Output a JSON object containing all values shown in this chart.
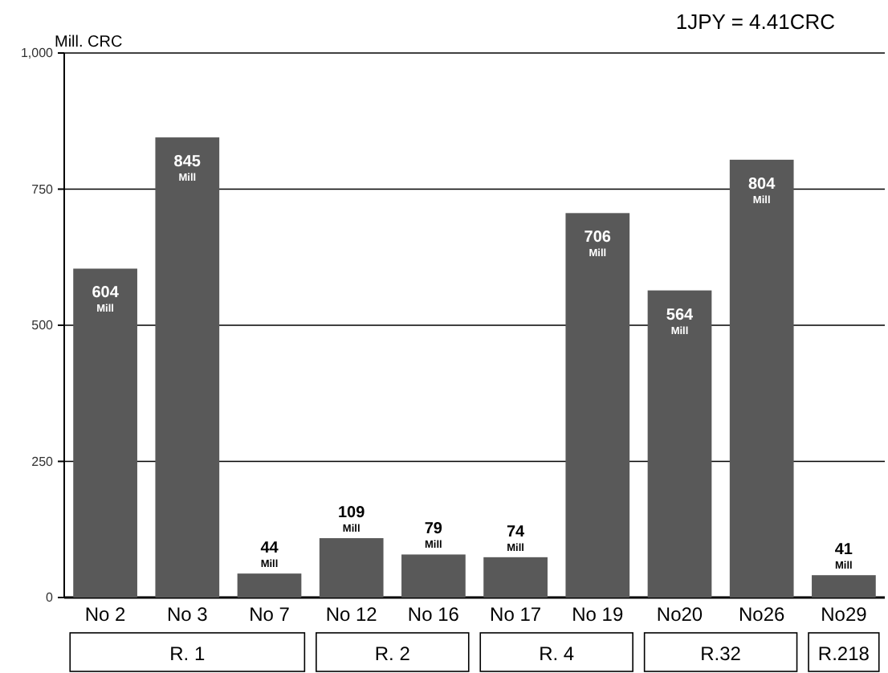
{
  "chart_data": {
    "type": "bar",
    "ylabel": "Mill. CRC",
    "categories": [
      "No 2",
      "No 3",
      "No 7",
      "No 12",
      "No 16",
      "No 17",
      "No 19",
      "No20",
      "No26",
      "No29"
    ],
    "values": [
      604,
      845,
      44,
      109,
      79,
      74,
      706,
      564,
      804,
      41
    ],
    "value_labels": [
      "604$_{Mill}$",
      "845$_{Mill}$",
      "44$_{Mill}$",
      "109$_{Mill}$",
      "79$_{Mill}$",
      "74$_{Mill}$",
      "706$_{Mill}$",
      "564$_{Mill}$",
      "804$_{Mill}$",
      "41$_{Mill}$"
    ],
    "color": "#595959",
    "ylim": [
      0,
      1000
    ],
    "yticks": [
      0,
      250,
      500,
      750,
      {
        "value": 1000,
        "label": "1,000"
      }
    ],
    "grid": "y",
    "annotations": [
      "1JPY = 4.41CRC",
      "R. 1",
      "R. 2",
      "R. 4",
      "R.32",
      "R.218"
    ]
  }
}
